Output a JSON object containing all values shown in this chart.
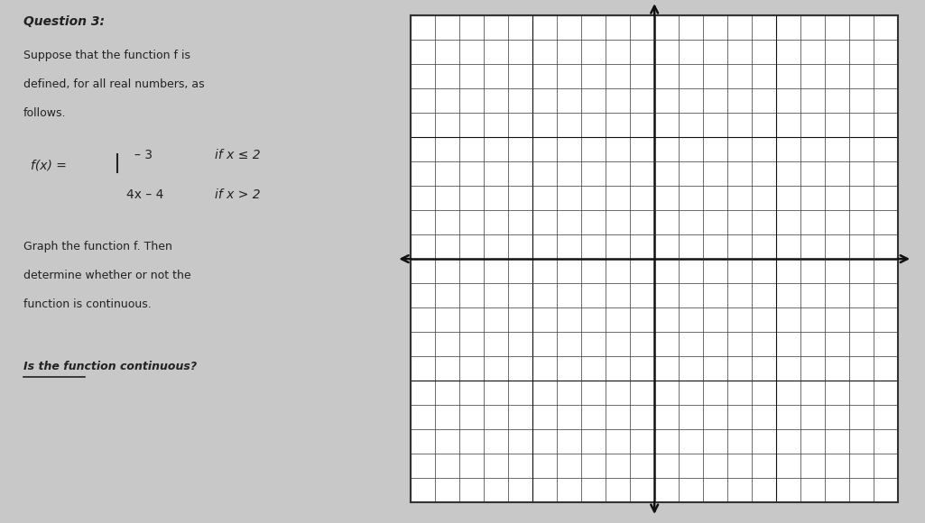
{
  "background_color": "#c8c8c8",
  "grid_background": "#ffffff",
  "title_text": "Question 3:",
  "problem_lines": [
    "Suppose that the function f is",
    "defined, for all real numbers, as",
    "follows."
  ],
  "function_label": "f(x) =",
  "piece1_expr": "– 3",
  "piece1_cond": "if x ≤ 2",
  "piece2_expr": "4x – 4",
  "piece2_cond": "if x > 2",
  "instruction_lines": [
    "Graph the function f. Then",
    "determine whether or not the",
    "function is continuous."
  ],
  "question_text": "Is the function continuous?",
  "underline_text": "________",
  "grid_n": 20,
  "grid_color": "#333333",
  "major_grid_color": "#111111",
  "axis_color": "#111111",
  "text_color": "#222222",
  "font_size_title": 10,
  "font_size_body": 9,
  "font_size_math": 10
}
